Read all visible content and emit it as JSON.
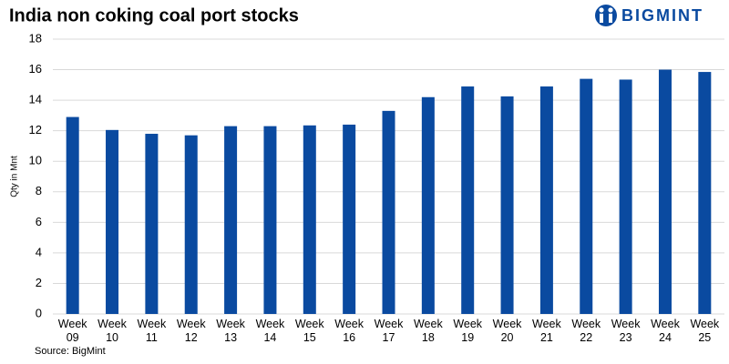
{
  "chart_data": {
    "type": "bar",
    "title": "India non coking coal port stocks",
    "logo": "BIGMINT",
    "y_label": "Qty in Mnt",
    "source": "Source: BigMint",
    "categories": [
      "Week 09",
      "Week 10",
      "Week 11",
      "Week 12",
      "Week 13",
      "Week 14",
      "Week 15",
      "Week 16",
      "Week 17",
      "Week 18",
      "Week 19",
      "Week 20",
      "Week 21",
      "Week 22",
      "Week 23",
      "Week 24",
      "Week 25"
    ],
    "values": [
      12.9,
      12.05,
      11.8,
      11.7,
      12.3,
      12.3,
      12.35,
      12.4,
      13.3,
      14.2,
      14.9,
      14.25,
      14.9,
      15.4,
      15.35,
      16.0,
      15.85
    ],
    "color": "#0a4aa0",
    "ylim": [
      0,
      18
    ],
    "yticks": [
      0,
      2,
      4,
      6,
      8,
      10,
      12,
      14,
      16,
      18
    ],
    "grid": true
  }
}
